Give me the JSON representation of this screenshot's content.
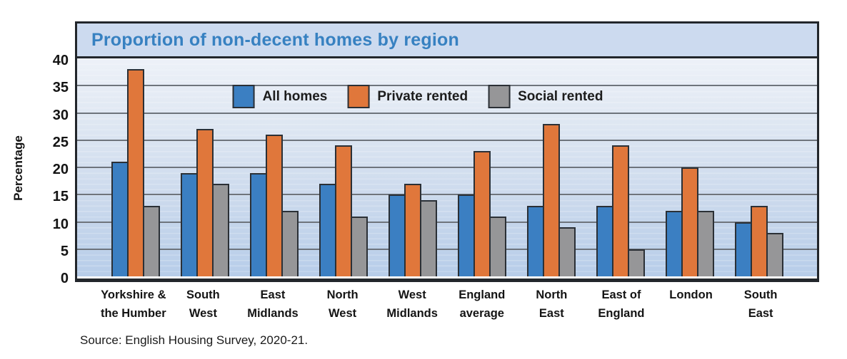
{
  "chart": {
    "title": "Proportion of non-decent homes by region",
    "y_axis_title": "Percentage",
    "source": "Source: English Housing Survey, 2020-21."
  },
  "chart_data": {
    "type": "bar",
    "title": "Proportion of non-decent homes by region",
    "xlabel": "",
    "ylabel": "Percentage",
    "ylim": [
      0,
      40
    ],
    "y_ticks": [
      0,
      5,
      10,
      15,
      20,
      25,
      30,
      35,
      40
    ],
    "grid": true,
    "legend_position": "inside-top-center",
    "categories": [
      "Yorkshire & the Humber",
      "South West",
      "East Midlands",
      "North West",
      "West Midlands",
      "England average",
      "North East",
      "East of England",
      "London",
      "South East"
    ],
    "category_label_lines": [
      [
        "Yorkshire &",
        "the Humber"
      ],
      [
        "South",
        "West"
      ],
      [
        "East",
        "Midlands"
      ],
      [
        "North",
        "West"
      ],
      [
        "West",
        "Midlands"
      ],
      [
        "England",
        "average"
      ],
      [
        "North",
        "East"
      ],
      [
        "East of",
        "England"
      ],
      [
        "London"
      ],
      [
        "South",
        "East"
      ]
    ],
    "series": [
      {
        "name": "All homes",
        "color": "#3b7fc2",
        "values": [
          21,
          19,
          19,
          17,
          15,
          15,
          13,
          13,
          12,
          10
        ]
      },
      {
        "name": "Private rented",
        "color": "#e0773b",
        "values": [
          38,
          27,
          26,
          24,
          17,
          23,
          28,
          24,
          20,
          13
        ]
      },
      {
        "name": "Social rented",
        "color": "#969698",
        "values": [
          13,
          17,
          12,
          11,
          14,
          11,
          9,
          5,
          12,
          8
        ]
      }
    ],
    "source": "Source: English Housing Survey, 2020-21."
  },
  "colors": {
    "title_text": "#3781c1",
    "title_band_bg": "#ccdaef",
    "frame_border": "#22262b",
    "gridline": "#6e747c",
    "plot_bg_top": "#edf1f8",
    "plot_bg_bottom": "#b7cde9",
    "bar_outline": "#2b3036"
  }
}
